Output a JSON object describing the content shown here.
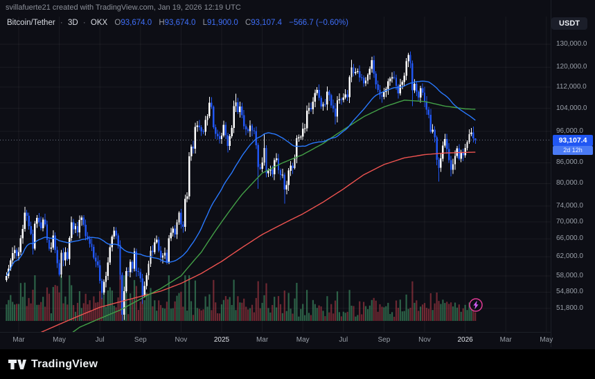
{
  "attribution": "svillafuerte21 created with TradingView.com, Jan 19, 2026 12:19 UTC",
  "legend": {
    "symbol": "Bitcoin/Tether",
    "sep": "·",
    "interval": "3D",
    "exchange": "OKX",
    "ohlc": [
      {
        "k": "O",
        "v": "93,674.0"
      },
      {
        "k": "H",
        "v": "93,674.0"
      },
      {
        "k": "L",
        "v": "91,900.0"
      },
      {
        "k": "C",
        "v": "93,107.4"
      }
    ],
    "change": "−566.7 (−0.60%)"
  },
  "currency_button": {
    "label": "USDT"
  },
  "price_scale": {
    "ticks": [
      {
        "price": 130000,
        "label": "130,000.0"
      },
      {
        "price": 120000,
        "label": "120,000.0"
      },
      {
        "price": 112000,
        "label": "112,000.0"
      },
      {
        "price": 104000,
        "label": "104,000.0"
      },
      {
        "price": 96000,
        "label": "96,000.0"
      },
      {
        "price": 86000,
        "label": "86,000.0"
      },
      {
        "price": 80000,
        "label": "80,000.0"
      },
      {
        "price": 74000,
        "label": "74,000.0"
      },
      {
        "price": 70000,
        "label": "70,000.0"
      },
      {
        "price": 66000,
        "label": "66,000.0"
      },
      {
        "price": 62000,
        "label": "62,000.0"
      },
      {
        "price": 58000,
        "label": "58,000.0"
      },
      {
        "price": 54800,
        "label": "54,800.0"
      },
      {
        "price": 51800,
        "label": "51,800.0"
      }
    ],
    "last_price_label": "93,107.4",
    "countdown": "2d 12h"
  },
  "time_scale": {
    "labels": [
      {
        "text": "Mar",
        "month_offset": 0,
        "year": false
      },
      {
        "text": "May",
        "month_offset": 2,
        "year": false
      },
      {
        "text": "Jul",
        "month_offset": 4,
        "year": false
      },
      {
        "text": "Sep",
        "month_offset": 6,
        "year": false
      },
      {
        "text": "Nov",
        "month_offset": 8,
        "year": false
      },
      {
        "text": "2025",
        "month_offset": 10,
        "year": true
      },
      {
        "text": "Mar",
        "month_offset": 12,
        "year": false
      },
      {
        "text": "May",
        "month_offset": 14,
        "year": false
      },
      {
        "text": "Jul",
        "month_offset": 16,
        "year": false
      },
      {
        "text": "Sep",
        "month_offset": 18,
        "year": false
      },
      {
        "text": "Nov",
        "month_offset": 20,
        "year": false
      },
      {
        "text": "2026",
        "month_offset": 22,
        "year": true
      },
      {
        "text": "Mar",
        "month_offset": 24,
        "year": false
      },
      {
        "text": "May",
        "month_offset": 26,
        "year": false
      }
    ]
  },
  "footer": {
    "brand": "TradingView"
  },
  "colors": {
    "bg": "#0d0e15",
    "up": "#ffffff",
    "down": "#2157f3",
    "ma_blue": "#2979ff",
    "ma_green": "#43a047",
    "ma_red": "#ef5350",
    "vol_up": "rgba(64,148,101,0.62)",
    "vol_down": "rgba(190,62,74,0.55)",
    "grid": "rgba(255,255,255,0.055)",
    "axis_text": "#9aa0a9",
    "accent": "#2157f3",
    "last_price_line": "#707787"
  },
  "chart_data": {
    "type": "candlestick",
    "symbol": "Bitcoin/Tether",
    "exchange": "OKX",
    "interval": "3D",
    "bar_days": 3,
    "unit": "USDT",
    "scale": "log",
    "ylim": [
      49500,
      134500
    ],
    "x_span": [
      "Feb 2024",
      "May 2026"
    ],
    "grid": true,
    "last": {
      "open": 93674.0,
      "high": 93674.0,
      "low": 91900.0,
      "close": 93107.4,
      "change": -566.7,
      "change_pct": -0.6
    },
    "closes_unit": "thousand USDT",
    "closes_k": [
      58.0,
      59.5,
      61.2,
      62.8,
      63.5,
      62.2,
      63.0,
      66.1,
      68.3,
      72.3,
      71.5,
      69.0,
      67.2,
      63.8,
      69.6,
      71.0,
      69.9,
      68.5,
      70.6,
      69.4,
      65.7,
      63.8,
      64.0,
      66.8,
      63.5,
      60.6,
      58.3,
      62.9,
      61.2,
      63.0,
      61.5,
      66.2,
      69.9,
      68.2,
      69.0,
      67.5,
      70.5,
      71.1,
      69.3,
      66.6,
      66.0,
      64.9,
      64.2,
      61.8,
      61.0,
      60.2,
      57.0,
      54.7,
      56.8,
      58.0,
      60.8,
      64.1,
      66.5,
      67.9,
      66.8,
      64.6,
      58.2,
      50.7,
      55.0,
      59.0,
      58.8,
      60.9,
      59.5,
      63.2,
      59.0,
      58.8,
      57.5,
      54.2,
      56.0,
      58.1,
      60.5,
      63.3,
      63.0,
      65.2,
      65.8,
      63.3,
      61.8,
      62.3,
      62.9,
      60.8,
      66.1,
      67.4,
      68.4,
      67.0,
      69.9,
      72.3,
      69.4,
      68.8,
      75.9,
      76.5,
      88.0,
      91.0,
      90.4,
      97.5,
      98.0,
      97.4,
      96.0,
      95.8,
      99.9,
      101.2,
      106.1,
      104.5,
      97.4,
      95.2,
      94.3,
      93.4,
      94.6,
      98.2,
      94.7,
      91.2,
      94.3,
      97.1,
      104.8,
      106.2,
      102.7,
      104.7,
      101.5,
      97.7,
      96.6,
      96.1,
      97.9,
      96.3,
      96.1,
      91.5,
      84.7,
      84.3,
      86.1,
      90.6,
      82.9,
      83.7,
      84.0,
      82.6,
      86.8,
      87.3,
      83.8,
      82.4,
      82.5,
      78.4,
      79.6,
      83.7,
      85.2,
      84.5,
      87.5,
      93.7,
      94.0,
      94.2,
      96.9,
      97.0,
      103.2,
      104.1,
      103.7,
      106.4,
      109.7,
      110.9,
      107.8,
      104.6,
      105.6,
      105.4,
      110.2,
      108.9,
      105.0,
      103.9,
      101.0,
      107.0,
      107.3,
      107.1,
      108.0,
      109.2,
      108.1,
      115.9,
      119.9,
      117.5,
      118.0,
      118.4,
      115.8,
      115.7,
      113.4,
      114.6,
      116.9,
      119.3,
      123.0,
      117.4,
      113.0,
      110.9,
      108.9,
      108.2,
      110.1,
      111.3,
      114.3,
      115.4,
      116.0,
      115.7,
      112.5,
      109.6,
      112.9,
      114.0,
      116.5,
      122.5,
      125.3,
      121.6,
      110.8,
      113.3,
      110.2,
      108.0,
      111.5,
      109.8,
      106.5,
      103.5,
      101.7,
      95.9,
      96.5,
      94.0,
      86.9,
      84.5,
      87.3,
      91.3,
      93.4,
      90.2,
      86.8,
      83.9,
      85.6,
      88.1,
      90.5,
      87.2,
      89.0,
      88.3,
      90.6,
      92.4,
      95.0,
      95.6,
      93.674,
      93.1074
    ],
    "overrides": {
      "9": {
        "h": 73.8
      },
      "47": {
        "l": 53.5
      },
      "57": {
        "l": 49.6
      },
      "67": {
        "l": 52.6
      },
      "100": {
        "h": 108.3
      },
      "109": {
        "l": 89.2
      },
      "113": {
        "h": 109.4
      },
      "124": {
        "l": 78.6
      },
      "127": {
        "h": 95.1
      },
      "137": {
        "l": 74.6
      },
      "153": {
        "h": 112.0
      },
      "162": {
        "l": 98.3
      },
      "170": {
        "h": 123.2
      },
      "180": {
        "h": 124.5
      },
      "184": {
        "l": 107.3
      },
      "190": {
        "h": 117.9
      },
      "198": {
        "h": 126.2
      },
      "200": {
        "l": 104.8
      },
      "213": {
        "l": 80.6
      },
      "219": {
        "l": 82.1
      },
      "231": {
        "o": 93.674,
        "h": 93.674,
        "l": 91.9,
        "c": 93.1074
      }
    },
    "ma": {
      "blue": {
        "period_bars": 40,
        "color": "#2979ff"
      },
      "green": {
        "color": "#43a047",
        "anchors_k": [
          40,
          43,
          46,
          48.5,
          50,
          51.5,
          53.5,
          55.5,
          58,
          63,
          70,
          77,
          83,
          86,
          88.5,
          92,
          96.5,
          101,
          104.5,
          107,
          106.5,
          104.8,
          103.8,
          103.5
        ]
      },
      "red": {
        "color": "#ef5350",
        "anchors_k": [
          46,
          47.5,
          49,
          50.5,
          52,
          53,
          54,
          55,
          56.5,
          58.5,
          61,
          64,
          67,
          69.5,
          72,
          75,
          78.5,
          82.5,
          85.5,
          87.5,
          88.5,
          89,
          89.2,
          89.3
        ]
      }
    },
    "volume": {
      "up_color": "rgba(64,148,101,0.62)",
      "down_color": "rgba(190,62,74,0.55)"
    }
  }
}
